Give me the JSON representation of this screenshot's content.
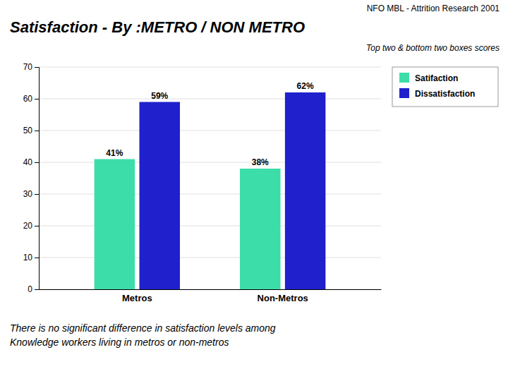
{
  "chart_data": {
    "type": "bar",
    "title": "Satisfaction -   By :METRO / NON METRO",
    "subtitle": "Top two & bottom two boxes scores",
    "annotations": [
      "NFO MBL - Attrition Research 2001",
      "There is no significant difference in satisfaction levels among",
      "Knowledge workers living in metros or non-metros"
    ],
    "categories": [
      "Metros",
      "Non-Metros"
    ],
    "series": [
      {
        "name": "Satifaction",
        "color": "#3DDDAA",
        "values": [
          41,
          38
        ],
        "value_labels": [
          "41%",
          "38%"
        ]
      },
      {
        "name": "Dissatisfaction",
        "color": "#2020CC",
        "values": [
          59,
          62
        ],
        "value_labels": [
          "59%",
          "62%"
        ]
      }
    ],
    "ylim": [
      0,
      70
    ],
    "yticks": [
      0,
      10,
      20,
      30,
      40,
      50,
      60,
      70
    ],
    "grid": true,
    "legend": "upper right",
    "data_labels": true
  }
}
